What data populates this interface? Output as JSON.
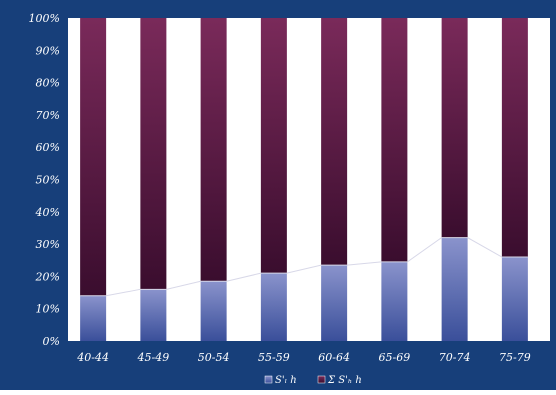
{
  "colors": {
    "frame": "#173f7a",
    "plot_bg": "#ffffff",
    "text": "#ffffff",
    "lower_top": "#8a93cc",
    "lower_bottom": "#3a4f9a",
    "upper_top": "#7a2a5a",
    "upper_bottom": "#3a0d2e",
    "line": "#d8d8e8"
  },
  "chart_data": {
    "type": "bar",
    "stacked": true,
    "percent": true,
    "categories": [
      "40-44",
      "45-49",
      "50-54",
      "55-59",
      "60-64",
      "65-69",
      "70-74",
      "75-79"
    ],
    "series": [
      {
        "name": "S'ₗ h",
        "values": [
          14,
          16,
          18.5,
          21,
          23.5,
          24.5,
          32,
          26
        ]
      },
      {
        "name": "Σ S'ₕ h",
        "values": [
          86,
          84,
          81.5,
          79,
          76.5,
          75.5,
          68,
          74
        ]
      }
    ],
    "line_overlay": {
      "values": [
        14,
        16,
        18.5,
        21,
        23.5,
        24.5,
        32,
        26
      ]
    },
    "yticks": [
      "0%",
      "10%",
      "20%",
      "30%",
      "40%",
      "50%",
      "60%",
      "70%",
      "80%",
      "90%",
      "100%"
    ],
    "ylim": [
      0,
      100
    ],
    "grid": false,
    "legend_position": "bottom"
  }
}
